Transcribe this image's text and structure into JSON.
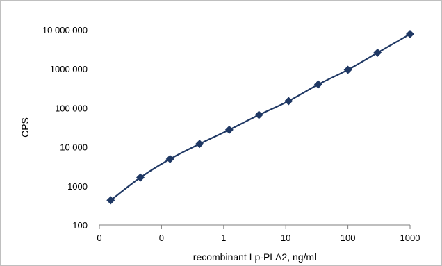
{
  "chart_data": {
    "type": "scatter",
    "title": "",
    "xlabel": "recombinant Lp-PLA2, ng/ml",
    "ylabel": "CPS",
    "x_scale": "log",
    "y_scale": "log",
    "xlim": [
      0.01,
      1000
    ],
    "ylim": [
      100,
      10000000
    ],
    "x_tick_values": [
      0.01,
      0.1,
      1,
      10,
      100,
      1000
    ],
    "x_tick_labels": [
      "0",
      "0",
      "1",
      "10",
      "100",
      "1000"
    ],
    "y_tick_values": [
      100,
      1000,
      10000,
      100000,
      1000000,
      10000000
    ],
    "y_tick_labels": [
      "100",
      "1000",
      "10 000",
      "100 000",
      "1000 000",
      "10 000 000"
    ],
    "grid": false,
    "legend": "none",
    "series": [
      {
        "color": "#1f3864",
        "marker": "diamond",
        "line": "smooth",
        "points": [
          {
            "x": 0.0152,
            "y": 430
          },
          {
            "x": 0.0457,
            "y": 1650
          },
          {
            "x": 0.137,
            "y": 4900
          },
          {
            "x": 0.41,
            "y": 12000
          },
          {
            "x": 1.23,
            "y": 27500
          },
          {
            "x": 3.7,
            "y": 66000
          },
          {
            "x": 11.1,
            "y": 150000
          },
          {
            "x": 33.3,
            "y": 400000
          },
          {
            "x": 100,
            "y": 950000
          },
          {
            "x": 300,
            "y": 2600000
          },
          {
            "x": 1000,
            "y": 7800000
          }
        ]
      }
    ]
  }
}
